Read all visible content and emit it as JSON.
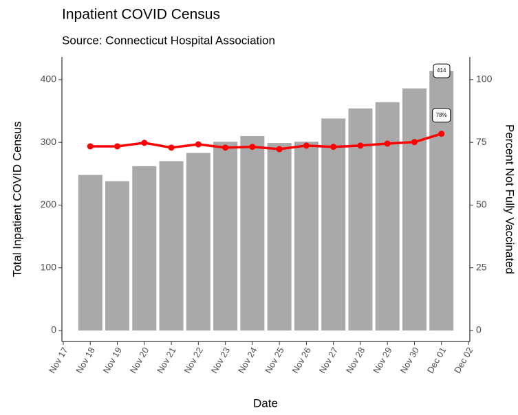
{
  "chart_data": {
    "type": "bar",
    "title": "Inpatient COVID Census",
    "subtitle": "Source: Connecticut Hospital Association",
    "x_label": "Date",
    "y_label": "Total Inpatient COVID Census",
    "y2_label": "Percent Not Fully Vaccinated",
    "categories": [
      "Nov 17",
      "Nov 18",
      "Nov 19",
      "Nov 20",
      "Nov 21",
      "Nov 22",
      "Nov 23",
      "Nov 24",
      "Nov 25",
      "Nov 26",
      "Nov 27",
      "Nov 28",
      "Nov 29",
      "Nov 30",
      "Dec 01",
      "Dec 02"
    ],
    "series": [
      {
        "type": "bar",
        "color": "#a9a9a9",
        "values": [
          null,
          248,
          238,
          262,
          270,
          283,
          301,
          310,
          299,
          301,
          338,
          354,
          364,
          386,
          414,
          null
        ],
        "value_labels": [
          null,
          null,
          null,
          null,
          null,
          null,
          null,
          null,
          null,
          null,
          null,
          null,
          null,
          null,
          "414",
          null
        ]
      },
      {
        "type": "line",
        "axis": "y2",
        "color": "#ff0000",
        "values": [
          null,
          73.4,
          73.4,
          74.8,
          72.9,
          74.2,
          72.9,
          73.2,
          72.3,
          73.7,
          73.2,
          73.7,
          74.5,
          75.1,
          78.4,
          null
        ],
        "value_labels": [
          null,
          null,
          null,
          null,
          null,
          null,
          null,
          null,
          null,
          null,
          null,
          null,
          null,
          null,
          "78%",
          null
        ]
      }
    ],
    "ylim": [
      -17.5,
      436
    ],
    "yticks": [
      0,
      100,
      200,
      300,
      400
    ],
    "y2lim": [
      -4.38,
      109
    ],
    "y2ticks": [
      0,
      25,
      50,
      75,
      100
    ],
    "grid": false
  }
}
